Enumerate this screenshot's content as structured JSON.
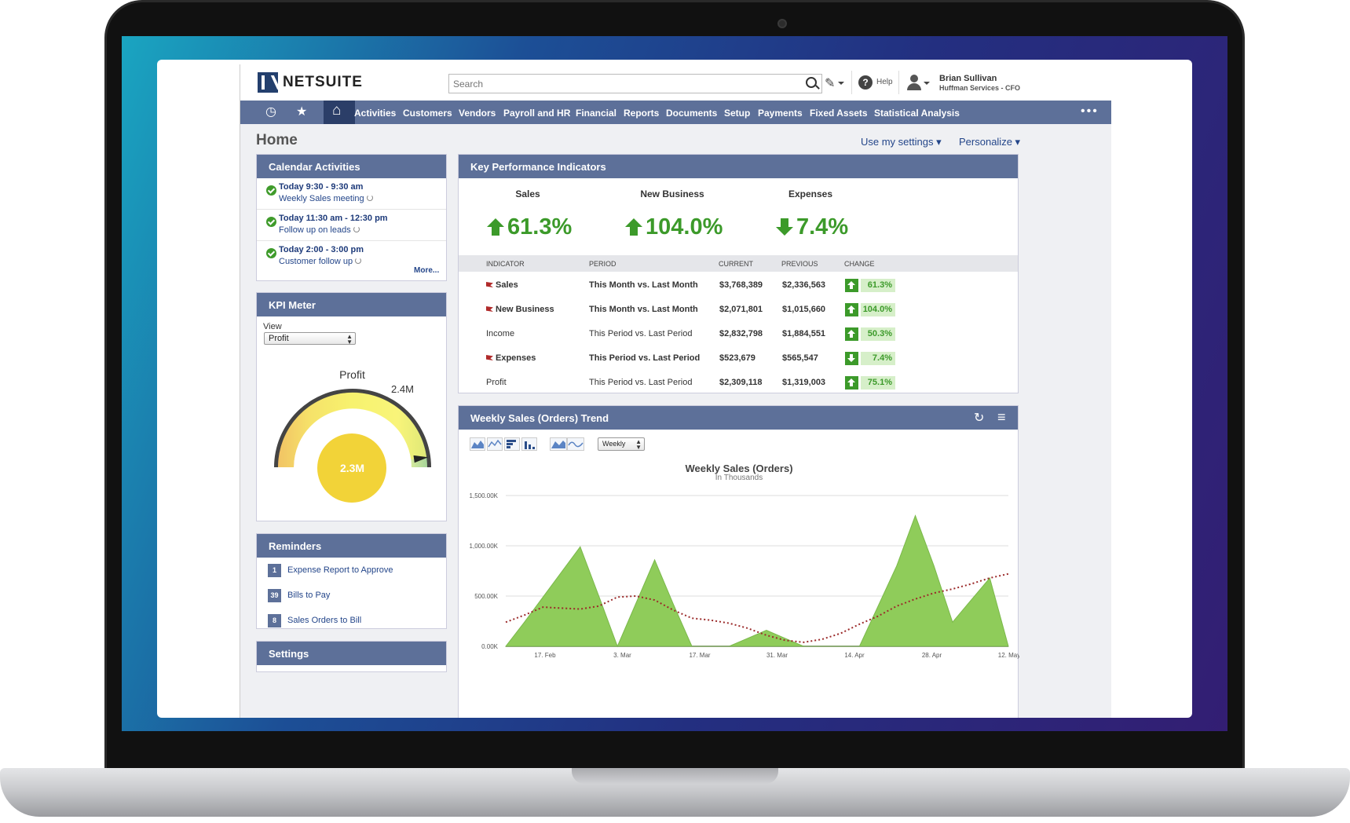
{
  "header": {
    "logo_text": "NETSUITE",
    "search_placeholder": "Search",
    "help_label": "Help",
    "user_name": "Brian Sullivan",
    "user_role": "Huffman Services - CFO"
  },
  "nav": {
    "items": [
      "Activities",
      "Customers",
      "Vendors",
      "Payroll and HR",
      "Financial",
      "Reports",
      "Documents",
      "Setup",
      "Payments",
      "Fixed Assets",
      "Statistical Analysis"
    ],
    "more": "•••",
    "recent_icon": "◷",
    "star_icon": "★",
    "home_icon": "⌂"
  },
  "page": {
    "title": "Home",
    "use_settings": "Use my settings",
    "personalize": "Personalize"
  },
  "calendar": {
    "title": "Calendar Activities",
    "items": [
      {
        "time": "Today 9:30 - 9:30 am",
        "desc": "Weekly Sales meeting"
      },
      {
        "time": "Today 11:30 am - 12:30 pm",
        "desc": "Follow up on leads"
      },
      {
        "time": "Today 2:00 - 3:00 pm",
        "desc": "Customer follow up"
      }
    ],
    "more": "More..."
  },
  "kpi_meter": {
    "title": "KPI Meter",
    "view_label": "View",
    "view_value": "Profit",
    "gauge_title": "Profit",
    "max_label": "2.4M",
    "value_label": "2.3M",
    "value_fraction": 0.958
  },
  "reminders": {
    "title": "Reminders",
    "items": [
      {
        "count": "1",
        "label": "Expense Report to Approve"
      },
      {
        "count": "39",
        "label": "Bills to Pay"
      },
      {
        "count": "8",
        "label": "Sales Orders to Bill"
      }
    ]
  },
  "settings": {
    "title": "Settings"
  },
  "kpi": {
    "title": "Key Performance Indicators",
    "highlights": [
      {
        "label": "Sales",
        "value": "61.3%",
        "direction": "up"
      },
      {
        "label": "New Business",
        "value": "104.0%",
        "direction": "up"
      },
      {
        "label": "Expenses",
        "value": "7.4%",
        "direction": "down"
      }
    ],
    "columns": [
      "INDICATOR",
      "PERIOD",
      "CURRENT",
      "PREVIOUS",
      "CHANGE"
    ],
    "rows": [
      {
        "indicator": "Sales",
        "period": "This Month vs. Last Month",
        "current": "$3,768,389",
        "previous": "$2,336,563",
        "change": "61.3%",
        "direction": "up",
        "flag": true
      },
      {
        "indicator": "New Business",
        "period": "This Month vs. Last Month",
        "current": "$2,071,801",
        "previous": "$1,015,660",
        "change": "104.0%",
        "direction": "up",
        "flag": true
      },
      {
        "indicator": "Income",
        "period": "This Period vs. Last Period",
        "current": "$2,832,798",
        "previous": "$1,884,551",
        "change": "50.3%",
        "direction": "up",
        "flag": false
      },
      {
        "indicator": "Expenses",
        "period": "This Period vs. Last Period",
        "current": "$523,679",
        "previous": "$565,547",
        "change": "7.4%",
        "direction": "down",
        "flag": true
      },
      {
        "indicator": "Profit",
        "period": "This Period vs. Last Period",
        "current": "$2,309,118",
        "previous": "$1,319,003",
        "change": "75.1%",
        "direction": "up",
        "flag": false
      }
    ]
  },
  "trend": {
    "title": "Weekly Sales (Orders) Trend",
    "range_value": "Weekly",
    "refresh_icon": "↻",
    "menu_icon": "≡"
  },
  "chart_data": {
    "type": "area",
    "title": "Weekly Sales (Orders)",
    "subtitle": "In Thousands",
    "yticks": [
      "0.00K",
      "500.00K",
      "1,000.00K",
      "1,500.00K"
    ],
    "ylim": [
      0,
      1500
    ],
    "xticks": [
      "17. Feb",
      "3. Mar",
      "17. Mar",
      "31. Mar",
      "14. Apr",
      "28. Apr",
      "12. May"
    ],
    "x_index": [
      0,
      1,
      2,
      3,
      4,
      5,
      6,
      7,
      8,
      9,
      10,
      11,
      12,
      13,
      14,
      15,
      16,
      17,
      18,
      19,
      20,
      21,
      22,
      23,
      24,
      25,
      26,
      27
    ],
    "series": [
      {
        "values": [
          0,
          240,
          490,
          740,
          990,
          500,
          0,
          430,
          860,
          420,
          0,
          0,
          0,
          80,
          160,
          80,
          0,
          0,
          0,
          0,
          400,
          800,
          1300,
          800,
          240,
          460,
          680,
          0
        ]
      },
      {
        "values": [
          240,
          310,
          390,
          380,
          370,
          400,
          490,
          500,
          460,
          360,
          280,
          260,
          230,
          180,
          110,
          60,
          40,
          70,
          130,
          220,
          300,
          400,
          470,
          530,
          570,
          620,
          680,
          720
        ]
      }
    ]
  }
}
